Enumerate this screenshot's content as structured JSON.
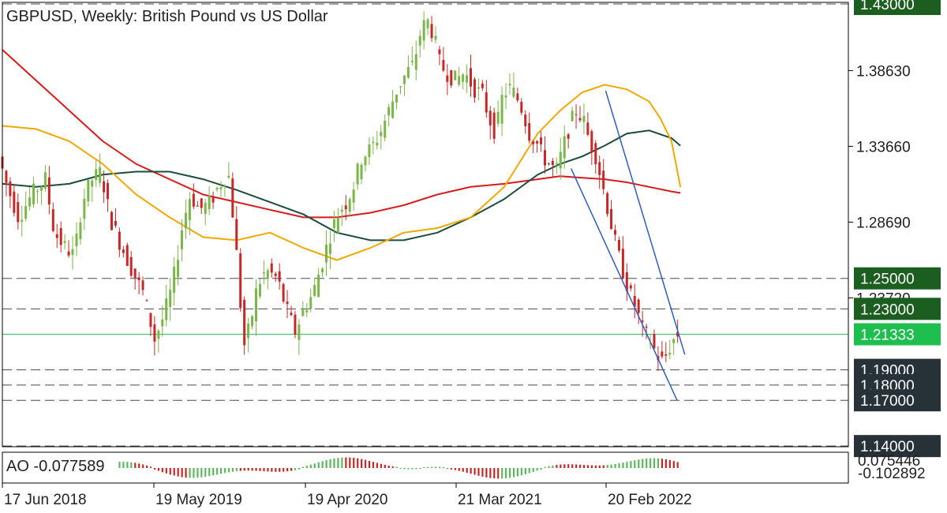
{
  "chart_data": {
    "type": "candlestick",
    "title": "GBPUSD, Weekly:  British Pound vs US Dollar",
    "symbol": "GBPUSD",
    "timeframe": "Weekly",
    "description": "British Pound vs US Dollar",
    "ylim": [
      1.14,
      1.43
    ],
    "y_ticks": [
      1.3863,
      1.3366,
      1.2869,
      1.2372
    ],
    "y_tick_labels": [
      "1.38630",
      "1.33660",
      "1.28690",
      "1.23720"
    ],
    "x_tick_labels": [
      "17 Jun 2018",
      "19 May 2019",
      "19 Apr 2020",
      "21 Mar 2021",
      "20 Feb 2022"
    ],
    "current_price": 1.21333,
    "current_price_label": "1.21333",
    "levels": [
      {
        "value": 1.43,
        "label": "1.43000",
        "style": "dashed",
        "color": "#1b5e20"
      },
      {
        "value": 1.25,
        "label": "1.25000",
        "style": "dashed",
        "color": "#1b5e20"
      },
      {
        "value": 1.23,
        "label": "1.23000",
        "style": "dashed",
        "color": "#1b5e20"
      },
      {
        "value": 1.19,
        "label": "1.19000",
        "style": "dashed",
        "color": "#263238"
      },
      {
        "value": 1.18,
        "label": "1.18000",
        "style": "dashed",
        "color": "#263238"
      },
      {
        "value": 1.17,
        "label": "1.17000",
        "style": "dashed",
        "color": "#263238"
      },
      {
        "value": 1.14,
        "label": "1.14000",
        "style": "dashed",
        "color": "#263238"
      }
    ],
    "price_path": [
      [
        0,
        1.33
      ],
      [
        8,
        1.31
      ],
      [
        18,
        1.29
      ],
      [
        30,
        1.305
      ],
      [
        42,
        1.315
      ],
      [
        50,
        1.28
      ],
      [
        60,
        1.27
      ],
      [
        68,
        1.265
      ],
      [
        75,
        1.3
      ],
      [
        84,
        1.315
      ],
      [
        92,
        1.32
      ],
      [
        100,
        1.29
      ],
      [
        108,
        1.275
      ],
      [
        120,
        1.255
      ],
      [
        130,
        1.24
      ],
      [
        140,
        1.21
      ],
      [
        148,
        1.225
      ],
      [
        156,
        1.245
      ],
      [
        165,
        1.285
      ],
      [
        172,
        1.305
      ],
      [
        180,
        1.295
      ],
      [
        190,
        1.3
      ],
      [
        197,
        1.31
      ],
      [
        206,
        1.32
      ],
      [
        212,
        1.28
      ],
      [
        220,
        1.205
      ],
      [
        226,
        1.22
      ],
      [
        232,
        1.245
      ],
      [
        240,
        1.255
      ],
      [
        250,
        1.25
      ],
      [
        258,
        1.23
      ],
      [
        266,
        1.215
      ],
      [
        274,
        1.23
      ],
      [
        282,
        1.24
      ],
      [
        290,
        1.26
      ],
      [
        298,
        1.28
      ],
      [
        306,
        1.295
      ],
      [
        312,
        1.3
      ],
      [
        318,
        1.31
      ],
      [
        326,
        1.33
      ],
      [
        334,
        1.335
      ],
      [
        342,
        1.345
      ],
      [
        350,
        1.36
      ],
      [
        358,
        1.375
      ],
      [
        366,
        1.385
      ],
      [
        372,
        1.39
      ],
      [
        378,
        1.41
      ],
      [
        384,
        1.42
      ],
      [
        390,
        1.41
      ],
      [
        396,
        1.39
      ],
      [
        402,
        1.385
      ],
      [
        410,
        1.38
      ],
      [
        418,
        1.385
      ],
      [
        426,
        1.375
      ],
      [
        434,
        1.37
      ],
      [
        440,
        1.355
      ],
      [
        446,
        1.345
      ],
      [
        452,
        1.37
      ],
      [
        458,
        1.375
      ],
      [
        464,
        1.37
      ],
      [
        470,
        1.36
      ],
      [
        476,
        1.345
      ],
      [
        482,
        1.34
      ],
      [
        488,
        1.33
      ],
      [
        494,
        1.325
      ],
      [
        500,
        1.32
      ],
      [
        506,
        1.335
      ],
      [
        512,
        1.35
      ],
      [
        518,
        1.36
      ],
      [
        524,
        1.355
      ],
      [
        530,
        1.34
      ],
      [
        536,
        1.33
      ],
      [
        542,
        1.31
      ],
      [
        548,
        1.29
      ],
      [
        554,
        1.27
      ],
      [
        560,
        1.255
      ],
      [
        566,
        1.24
      ],
      [
        572,
        1.23
      ],
      [
        578,
        1.215
      ],
      [
        584,
        1.21
      ],
      [
        590,
        1.2
      ],
      [
        596,
        1.195
      ],
      [
        602,
        1.205
      ],
      [
        608,
        1.213
      ]
    ],
    "moving_averages": [
      {
        "color": "#d81b1b",
        "path": [
          [
            0,
            1.4
          ],
          [
            30,
            1.38
          ],
          [
            60,
            1.36
          ],
          [
            90,
            1.34
          ],
          [
            120,
            1.325
          ],
          [
            150,
            1.315
          ],
          [
            180,
            1.305
          ],
          [
            210,
            1.3
          ],
          [
            240,
            1.295
          ],
          [
            270,
            1.29
          ],
          [
            300,
            1.29
          ],
          [
            330,
            1.293
          ],
          [
            360,
            1.298
          ],
          [
            390,
            1.305
          ],
          [
            420,
            1.31
          ],
          [
            450,
            1.312
          ],
          [
            480,
            1.315
          ],
          [
            500,
            1.317
          ],
          [
            520,
            1.316
          ],
          [
            540,
            1.315
          ],
          [
            560,
            1.313
          ],
          [
            580,
            1.31
          ],
          [
            600,
            1.307
          ],
          [
            608,
            1.306
          ]
        ]
      },
      {
        "color": "#1b4d3e",
        "path": [
          [
            0,
            1.312
          ],
          [
            30,
            1.31
          ],
          [
            60,
            1.312
          ],
          [
            90,
            1.318
          ],
          [
            120,
            1.32
          ],
          [
            150,
            1.32
          ],
          [
            180,
            1.315
          ],
          [
            210,
            1.308
          ],
          [
            240,
            1.3
          ],
          [
            270,
            1.292
          ],
          [
            300,
            1.28
          ],
          [
            330,
            1.275
          ],
          [
            360,
            1.275
          ],
          [
            390,
            1.28
          ],
          [
            420,
            1.29
          ],
          [
            450,
            1.302
          ],
          [
            480,
            1.318
          ],
          [
            500,
            1.325
          ],
          [
            520,
            1.33
          ],
          [
            540,
            1.337
          ],
          [
            560,
            1.345
          ],
          [
            580,
            1.347
          ],
          [
            600,
            1.342
          ],
          [
            608,
            1.337
          ]
        ]
      },
      {
        "color": "#f2a800",
        "path": [
          [
            0,
            1.35
          ],
          [
            30,
            1.348
          ],
          [
            60,
            1.34
          ],
          [
            90,
            1.325
          ],
          [
            120,
            1.305
          ],
          [
            150,
            1.29
          ],
          [
            180,
            1.277
          ],
          [
            210,
            1.275
          ],
          [
            240,
            1.28
          ],
          [
            270,
            1.27
          ],
          [
            300,
            1.262
          ],
          [
            330,
            1.27
          ],
          [
            360,
            1.28
          ],
          [
            390,
            1.283
          ],
          [
            420,
            1.29
          ],
          [
            450,
            1.31
          ],
          [
            480,
            1.345
          ],
          [
            500,
            1.36
          ],
          [
            520,
            1.372
          ],
          [
            540,
            1.377
          ],
          [
            560,
            1.374
          ],
          [
            580,
            1.366
          ],
          [
            590,
            1.355
          ],
          [
            600,
            1.34
          ],
          [
            608,
            1.31
          ]
        ]
      }
    ],
    "trendlines": [
      {
        "color": "#2e5cc2",
        "from": [
          541,
          1.373
        ],
        "to": [
          612,
          1.2
        ]
      },
      {
        "color": "#2e5cc2",
        "from": [
          510,
          1.322
        ],
        "to": [
          605,
          1.17
        ]
      }
    ],
    "ao": {
      "label": "AO -0.077589",
      "value": -0.077589,
      "y_tick_labels": [
        "0.075446",
        "-0.102892"
      ],
      "ylim": [
        -0.102892,
        0.075446
      ],
      "up_color": "#5cb85c",
      "down_color": "#c62828"
    }
  }
}
